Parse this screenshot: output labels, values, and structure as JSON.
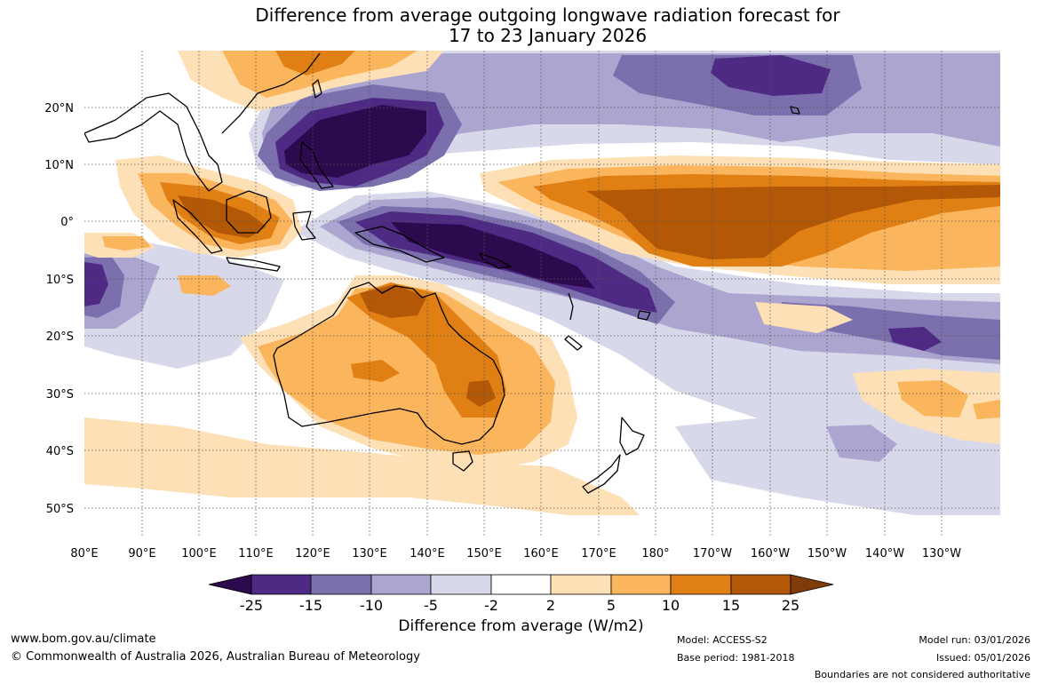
{
  "title": {
    "line1": "Difference from average outgoing longwave radiation forecast for",
    "line2": "17 to 23 January 2026"
  },
  "axes": {
    "lon_labels": [
      "80°E",
      "90°E",
      "100°E",
      "110°E",
      "120°E",
      "130°E",
      "140°E",
      "150°E",
      "160°E",
      "170°E",
      "180°",
      "170°W",
      "160°W",
      "150°W",
      "140°W",
      "130°W"
    ],
    "lat_labels": [
      "20°N",
      "10°N",
      "0°",
      "10°S",
      "20°S",
      "30°S",
      "40°S",
      "50°S"
    ]
  },
  "colorbar": {
    "title": "Difference from average (W/m2)",
    "ticks": [
      "-25",
      "-15",
      "-10",
      "-5",
      "-2",
      "2",
      "5",
      "10",
      "15",
      "25"
    ],
    "colors": [
      "#2d0a4e",
      "#4e2a84",
      "#7b6fae",
      "#aba5cf",
      "#d8d8eb",
      "#ffffff",
      "#fee0b6",
      "#fbb55d",
      "#df7f14",
      "#b35806",
      "#7f3b08"
    ]
  },
  "footer": {
    "website": "www.bom.gov.au/climate",
    "copyright": "© Commonwealth of Australia 2026, Australian Bureau of Meteorology",
    "model": "Model: ACCESS-S2",
    "base_period": "Base period: 1981-2018",
    "model_run": "Model run: 03/01/2026",
    "issued": "Issued: 05/01/2026",
    "disclaimer": "Boundaries are not considered authoritative"
  }
}
